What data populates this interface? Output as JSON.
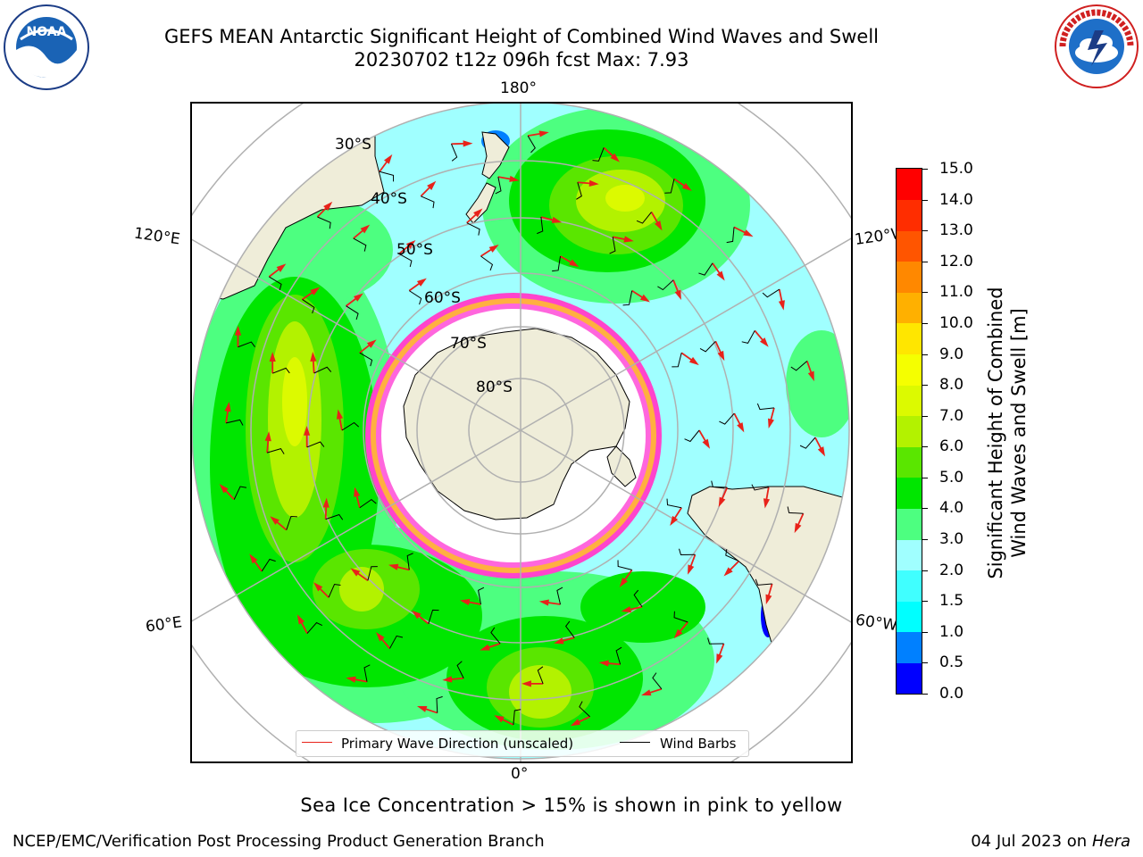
{
  "title": {
    "line1": "GEFS MEAN Antarctic Significant Height of Combined Wind Waves and Swell",
    "line2": "20230702 t12z 096h fcst   Max: 7.93"
  },
  "logos": {
    "noaa": {
      "text": "NOAA",
      "ring_text": "NATIONAL OCEANIC AND ATMOSPHERIC ADMINISTRATION · U.S. DEPARTMENT OF COMMERCE",
      "icon": "noaa-logo"
    },
    "nws": {
      "ring_text": "NATIONAL WEATHER SERVICE",
      "icon": "nws-logo"
    }
  },
  "map": {
    "projection": "south polar stereographic",
    "longitude_labels": {
      "top": "180°",
      "bottom": "0°",
      "upper_left": "120°E",
      "upper_right": "120°W",
      "lower_left": "60°E",
      "lower_right": "60°W"
    },
    "latitude_labels": [
      "30°S",
      "40°S",
      "50°S",
      "60°S",
      "70°S",
      "80°S"
    ],
    "legend": {
      "wave_direction": "Primary Wave Direction (unscaled)",
      "wind_barbs": "Wind Barbs"
    },
    "colors": {
      "land": "#efedd9",
      "antarctica": "#efedd9",
      "sea_ice": "#ffffff",
      "ice_edge": "#ff44cc",
      "arrow": "#e8221a",
      "barb": "#000000"
    }
  },
  "colorbar": {
    "ticks": [
      "0.0",
      "0.5",
      "1.0",
      "1.5",
      "2.0",
      "3.0",
      "4.0",
      "5.0",
      "6.0",
      "7.0",
      "8.0",
      "9.0",
      "10.0",
      "11.0",
      "12.0",
      "13.0",
      "14.0",
      "15.0"
    ],
    "colors": [
      "#0000ff",
      "#0080ff",
      "#00ffff",
      "#40ffff",
      "#a0ffff",
      "#4dff80",
      "#00e600",
      "#5ae600",
      "#b3f200",
      "#dcfa00",
      "#f5ff00",
      "#ffe600",
      "#ffb000",
      "#ff8800",
      "#ff5500",
      "#ff2d00",
      "#ff0000"
    ],
    "title_line1": "Significant Height of Combined",
    "title_line2": "Wind Waves and Swell [m]"
  },
  "caption": "Sea Ice Concentration > 15% is shown in pink to yellow",
  "footer": {
    "left": "NCEP/EMC/Verification Post Processing Product Generation Branch",
    "date": "04 Jul 2023 on ",
    "host": "Hera"
  }
}
